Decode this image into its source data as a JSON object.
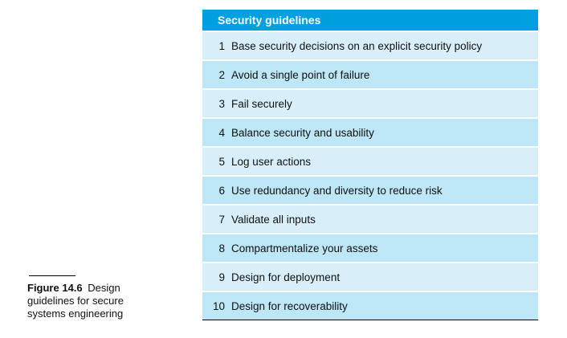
{
  "caption": {
    "label": "Figure 14.6",
    "text": "Design guidelines for secure systems engineering"
  },
  "table": {
    "title": "Security guidelines",
    "rows": [
      {
        "num": "1",
        "text": "Base security decisions on an explicit security policy"
      },
      {
        "num": "2",
        "text": "Avoid a single point of failure"
      },
      {
        "num": "3",
        "text": "Fail securely"
      },
      {
        "num": "4",
        "text": "Balance security and usability"
      },
      {
        "num": "5",
        "text": "Log user actions"
      },
      {
        "num": "6",
        "text": "Use redundancy and diversity to reduce risk"
      },
      {
        "num": "7",
        "text": "Validate all inputs"
      },
      {
        "num": "8",
        "text": "Compartmentalize your assets"
      },
      {
        "num": "9",
        "text": "Design for deployment"
      },
      {
        "num": "10",
        "text": "Design for recoverability"
      }
    ]
  },
  "colors": {
    "header_bg": "#00a0df",
    "row_light": "#d8effa",
    "row_dark": "#bde6f7"
  }
}
